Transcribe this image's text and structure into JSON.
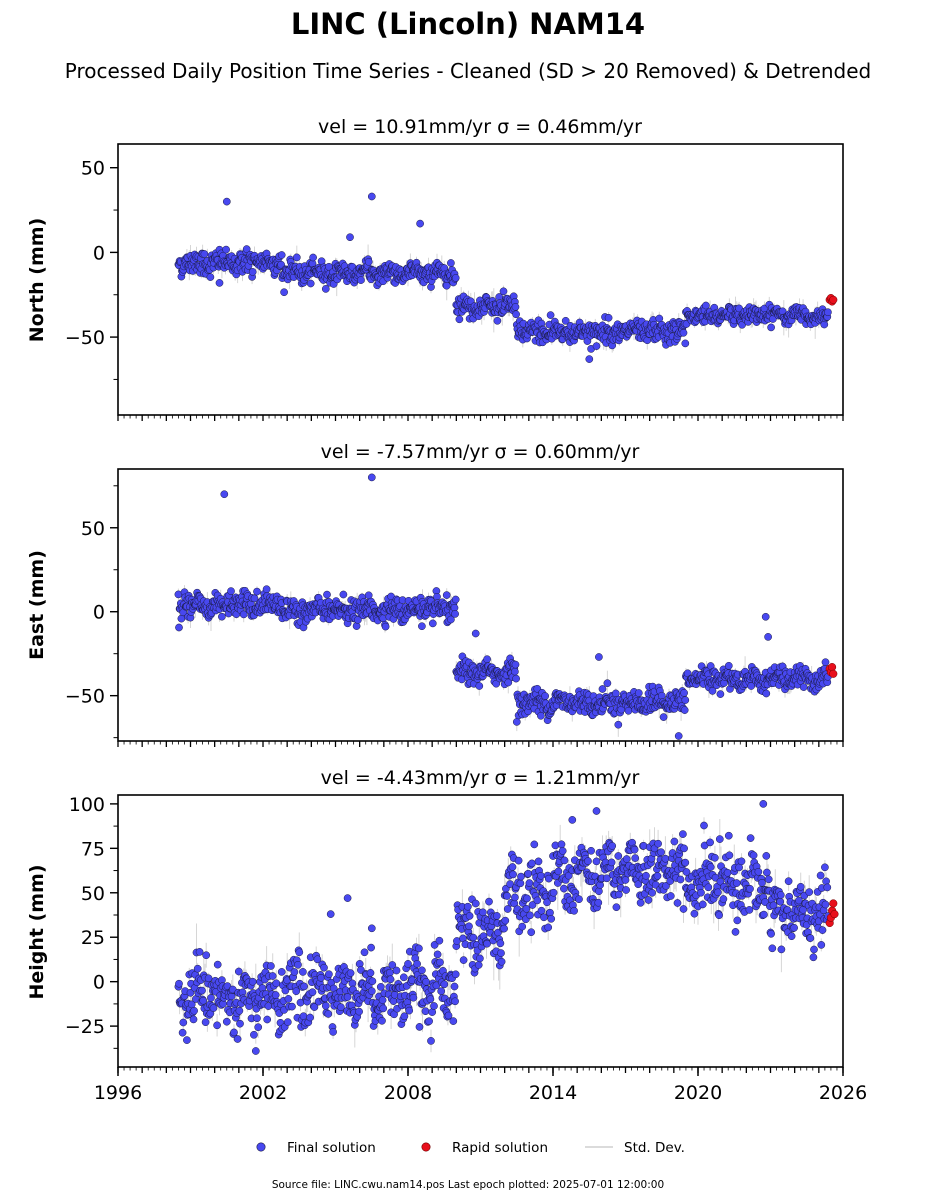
{
  "title": "LINC (Lincoln) NAM14",
  "subtitle": "Processed Daily Position Time Series - Cleaned (SD > 20 Removed) & Detrended",
  "footer": "Source file: LINC.cwu.nam14.pos  Last epoch plotted: 2025-07-01 12:00:00",
  "legend": {
    "placement": "bottom-center",
    "items": [
      "Final solution",
      "Rapid solution",
      "Std. Dev."
    ]
  },
  "colors": {
    "final": "#4848f0",
    "final_edge": "#1a1a40",
    "rapid": "#e8101c",
    "rapid_edge": "#700000",
    "stddev": "#b4b4b4",
    "axis": "#000000"
  },
  "chart_data": [
    {
      "type": "scatter",
      "title": "vel = 10.91mm/yr   σ = 0.46mm/yr",
      "ylabel": "North (mm)",
      "xlim": [
        1996,
        2026
      ],
      "ylim": [
        -96,
        64
      ],
      "yticks": [
        50,
        0,
        -50
      ],
      "xticks": [],
      "grid": false,
      "segments": [
        {
          "x0": 1998.5,
          "x1": 2002.8,
          "level": -6,
          "noise": 3.5
        },
        {
          "x0": 2002.8,
          "x1": 2010.0,
          "level": -12,
          "noise": 3
        },
        {
          "x0": 2010.0,
          "x1": 2012.5,
          "level": -32,
          "noise": 3
        },
        {
          "x0": 2012.5,
          "x1": 2019.5,
          "level": -47,
          "noise": 3.2
        },
        {
          "x0": 2019.5,
          "x1": 2025.4,
          "level": -37,
          "noise": 2.5
        }
      ],
      "outliers": [
        [
          2000.5,
          30
        ],
        [
          2005.6,
          9
        ],
        [
          2006.5,
          33
        ],
        [
          2008.5,
          17
        ],
        [
          2015.5,
          -63
        ],
        [
          2000.2,
          -18
        ],
        [
          2013.9,
          -37
        ]
      ],
      "rapid": [
        [
          2025.45,
          -28
        ],
        [
          2025.5,
          -27
        ],
        [
          2025.55,
          -29
        ],
        [
          2025.6,
          -28
        ]
      ]
    },
    {
      "type": "scatter",
      "title": "vel = -7.57mm/yr   σ = 0.60mm/yr",
      "ylabel": "East (mm)",
      "xlim": [
        1996,
        2026
      ],
      "ylim": [
        -77,
        85
      ],
      "yticks": [
        50,
        0,
        -50
      ],
      "xticks": [],
      "grid": false,
      "segments": [
        {
          "x0": 1998.5,
          "x1": 2002.8,
          "level": 4,
          "noise": 3.5
        },
        {
          "x0": 2002.8,
          "x1": 2010.0,
          "level": 1,
          "noise": 3.5
        },
        {
          "x0": 2010.0,
          "x1": 2012.5,
          "level": -36,
          "noise": 3
        },
        {
          "x0": 2012.5,
          "x1": 2019.5,
          "level": -54,
          "noise": 3.5
        },
        {
          "x0": 2019.5,
          "x1": 2025.4,
          "level": -40,
          "noise": 3
        }
      ],
      "outliers": [
        [
          2000.4,
          70
        ],
        [
          2006.5,
          80
        ],
        [
          2010.8,
          -13
        ],
        [
          2022.8,
          -3
        ],
        [
          2022.9,
          -15
        ],
        [
          2015.9,
          -27
        ],
        [
          2013.5,
          -62
        ],
        [
          2019.2,
          -74
        ]
      ],
      "rapid": [
        [
          2025.45,
          -34
        ],
        [
          2025.5,
          -36
        ],
        [
          2025.55,
          -33
        ],
        [
          2025.6,
          -37
        ]
      ]
    },
    {
      "type": "scatter",
      "title": "vel = -4.43mm/yr   σ = 1.21mm/yr",
      "ylabel": "Height (mm)",
      "xlim": [
        1996,
        2026
      ],
      "ylim": [
        -48,
        105
      ],
      "yticks": [
        100,
        75,
        50,
        25,
        0,
        -25
      ],
      "xticks": [
        1996,
        2002,
        2008,
        2014,
        2020,
        2026
      ],
      "grid": false,
      "segments": [
        {
          "x0": 1998.5,
          "x1": 2002.8,
          "level": -10,
          "noise": 9
        },
        {
          "x0": 2002.8,
          "x1": 2010.0,
          "level": -5,
          "noise": 9
        },
        {
          "x0": 2010.0,
          "x1": 2012.0,
          "level": 28,
          "noise": 9
        },
        {
          "x0": 2012.0,
          "x1": 2014.0,
          "level": 50,
          "noise": 9
        },
        {
          "x0": 2014.0,
          "x1": 2019.5,
          "level": 62,
          "noise": 9
        },
        {
          "x0": 2019.5,
          "x1": 2023.0,
          "level": 55,
          "noise": 9
        },
        {
          "x0": 2023.0,
          "x1": 2025.4,
          "level": 38,
          "noise": 9
        }
      ],
      "outliers": [
        [
          2005.5,
          47
        ],
        [
          2004.8,
          38
        ],
        [
          2006.5,
          30
        ],
        [
          2015.8,
          96
        ],
        [
          2022.7,
          100
        ],
        [
          2014.8,
          91
        ],
        [
          2001.7,
          -39
        ]
      ],
      "rapid": [
        [
          2025.45,
          33
        ],
        [
          2025.5,
          36
        ],
        [
          2025.55,
          40
        ],
        [
          2025.6,
          44
        ],
        [
          2025.65,
          38
        ]
      ]
    }
  ]
}
